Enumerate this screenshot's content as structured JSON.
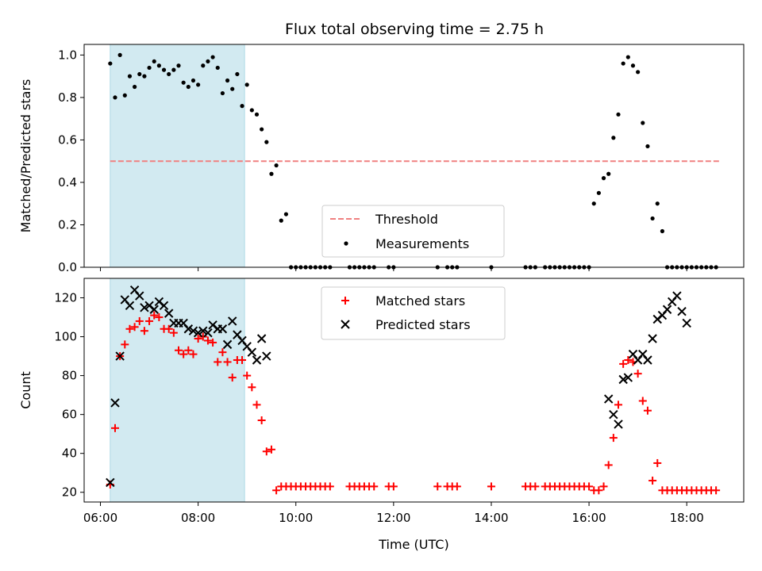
{
  "figure": {
    "title": "Flux total observing time = 2.75 h",
    "xlabel": "Time (UTC)",
    "colors": {
      "shade": "#add8e6",
      "threshold": "#f08080",
      "measurements": "#000000",
      "matched": "#ff0000",
      "predicted": "#000000"
    }
  },
  "chart_data": [
    {
      "type": "scatter",
      "title": "Flux total observing time = 2.75 h",
      "xlabel": "Time (UTC)",
      "ylabel": "Matched/Predicted stars",
      "xlim": [
        "05:40",
        "19:10"
      ],
      "ylim": [
        0,
        1.05
      ],
      "yticks": [
        0.0,
        0.2,
        0.4,
        0.6,
        0.8,
        1.0
      ],
      "ytick_labels": [
        "0.0",
        "0.2",
        "0.4",
        "0.6",
        "0.8",
        "1.0"
      ],
      "xtick_labels": [
        "06:00",
        "08:00",
        "10:00",
        "12:00",
        "14:00",
        "16:00",
        "18:00"
      ],
      "shaded_region": [
        "06:12",
        "08:57"
      ],
      "threshold": {
        "name": "Threshold",
        "value": 0.5,
        "x_range": [
          "06:12",
          "18:40"
        ]
      },
      "legend": {
        "placement": "lower center",
        "entries": [
          "Threshold",
          "Measurements"
        ]
      },
      "series": [
        {
          "name": "Measurements",
          "x": [
            "06:12",
            "06:18",
            "06:24",
            "06:30",
            "06:36",
            "06:42",
            "06:48",
            "06:54",
            "07:00",
            "07:06",
            "07:12",
            "07:18",
            "07:24",
            "07:30",
            "07:36",
            "07:42",
            "07:48",
            "07:54",
            "08:00",
            "08:06",
            "08:12",
            "08:18",
            "08:24",
            "08:30",
            "08:36",
            "08:42",
            "08:48",
            "08:54",
            "09:00",
            "09:06",
            "09:12",
            "09:18",
            "09:24",
            "09:30",
            "09:36",
            "09:42",
            "09:48",
            "09:54",
            "10:00",
            "10:06",
            "10:12",
            "10:18",
            "10:24",
            "10:30",
            "10:36",
            "10:42",
            "11:06",
            "11:12",
            "11:18",
            "11:24",
            "11:30",
            "11:36",
            "11:54",
            "12:00",
            "12:54",
            "13:06",
            "13:12",
            "13:18",
            "14:00",
            "14:42",
            "14:48",
            "14:54",
            "15:06",
            "15:12",
            "15:18",
            "15:24",
            "15:30",
            "15:36",
            "15:42",
            "15:48",
            "15:54",
            "16:00",
            "16:06",
            "16:12",
            "16:18",
            "16:24",
            "16:30",
            "16:36",
            "16:42",
            "16:48",
            "16:54",
            "17:00",
            "17:06",
            "17:12",
            "17:18",
            "17:24",
            "17:30",
            "17:36",
            "17:42",
            "17:48",
            "17:54",
            "18:00",
            "18:06",
            "18:12",
            "18:18",
            "18:24",
            "18:30",
            "18:36"
          ],
          "y": [
            0.96,
            0.8,
            1.0,
            0.81,
            0.9,
            0.85,
            0.91,
            0.9,
            0.94,
            0.97,
            0.95,
            0.93,
            0.91,
            0.93,
            0.95,
            0.87,
            0.85,
            0.88,
            0.86,
            0.95,
            0.97,
            0.99,
            0.94,
            0.82,
            0.88,
            0.84,
            0.91,
            0.76,
            0.86,
            0.74,
            0.72,
            0.65,
            0.59,
            0.44,
            0.48,
            0.22,
            0.25,
            0.0,
            0.0,
            0.0,
            0.0,
            0.0,
            0.0,
            0.0,
            0.0,
            0.0,
            0.0,
            0.0,
            0.0,
            0.0,
            0.0,
            0.0,
            0.0,
            0.0,
            0.0,
            0.0,
            0.0,
            0.0,
            0.0,
            0.0,
            0.0,
            0.0,
            0.0,
            0.0,
            0.0,
            0.0,
            0.0,
            0.0,
            0.0,
            0.0,
            0.0,
            0.0,
            0.3,
            0.35,
            0.42,
            0.44,
            0.61,
            0.72,
            0.96,
            0.99,
            0.95,
            0.92,
            0.68,
            0.57,
            0.23,
            0.3,
            0.17,
            0.0,
            0.0,
            0.0,
            0.0,
            0.0,
            0.0,
            0.0,
            0.0,
            0.0,
            0.0,
            0.0
          ]
        }
      ]
    },
    {
      "type": "scatter",
      "xlabel": "Time (UTC)",
      "ylabel": "Count",
      "xlim": [
        "05:40",
        "19:10"
      ],
      "ylim": [
        15,
        130
      ],
      "yticks": [
        20,
        40,
        60,
        80,
        100,
        120
      ],
      "ytick_labels": [
        "20",
        "40",
        "60",
        "80",
        "100",
        "120"
      ],
      "xtick_labels": [
        "06:00",
        "08:00",
        "10:00",
        "12:00",
        "14:00",
        "16:00",
        "18:00"
      ],
      "shaded_region": [
        "06:12",
        "08:57"
      ],
      "legend": {
        "placement": "upper center",
        "entries": [
          "Matched stars",
          "Predicted stars"
        ]
      },
      "series": [
        {
          "name": "Matched stars",
          "x": [
            "06:12",
            "06:18",
            "06:24",
            "06:30",
            "06:36",
            "06:42",
            "06:48",
            "06:54",
            "07:00",
            "07:06",
            "07:12",
            "07:18",
            "07:24",
            "07:30",
            "07:36",
            "07:42",
            "07:48",
            "07:54",
            "08:00",
            "08:06",
            "08:12",
            "08:18",
            "08:24",
            "08:30",
            "08:36",
            "08:42",
            "08:48",
            "08:54",
            "09:00",
            "09:06",
            "09:12",
            "09:18",
            "09:24",
            "09:30",
            "09:36",
            "09:42",
            "09:48",
            "09:54",
            "10:00",
            "10:06",
            "10:12",
            "10:18",
            "10:24",
            "10:30",
            "10:36",
            "10:42",
            "11:06",
            "11:12",
            "11:18",
            "11:24",
            "11:30",
            "11:36",
            "11:54",
            "12:00",
            "12:54",
            "13:06",
            "13:12",
            "13:18",
            "14:00",
            "14:42",
            "14:48",
            "14:54",
            "15:06",
            "15:12",
            "15:18",
            "15:24",
            "15:30",
            "15:36",
            "15:42",
            "15:48",
            "15:54",
            "16:00",
            "16:06",
            "16:12",
            "16:18",
            "16:24",
            "16:30",
            "16:36",
            "16:42",
            "16:48",
            "16:54",
            "17:00",
            "17:06",
            "17:12",
            "17:18",
            "17:24",
            "17:30",
            "17:36",
            "17:42",
            "17:48",
            "17:54",
            "18:00",
            "18:06",
            "18:12",
            "18:18",
            "18:24",
            "18:30",
            "18:36"
          ],
          "y": [
            24,
            53,
            90,
            96,
            104,
            105,
            108,
            103,
            108,
            111,
            110,
            104,
            104,
            102,
            93,
            91,
            93,
            91,
            99,
            100,
            98,
            97,
            87,
            92,
            87,
            79,
            88,
            88,
            80,
            74,
            65,
            57,
            41,
            42,
            21,
            23,
            23,
            23,
            23,
            23,
            23,
            23,
            23,
            23,
            23,
            23,
            23,
            23,
            23,
            23,
            23,
            23,
            23,
            23,
            23,
            23,
            23,
            23,
            23,
            23,
            23,
            23,
            23,
            23,
            23,
            23,
            23,
            23,
            23,
            23,
            23,
            23,
            21,
            21,
            23,
            34,
            48,
            65,
            86,
            88,
            87,
            81,
            67,
            62,
            26,
            35,
            21,
            21,
            21,
            21,
            21,
            21,
            21,
            21,
            21,
            21,
            21,
            21
          ]
        },
        {
          "name": "Predicted stars",
          "x": [
            "06:12",
            "06:18",
            "06:24",
            "06:30",
            "06:36",
            "06:42",
            "06:48",
            "06:54",
            "07:00",
            "07:06",
            "07:12",
            "07:18",
            "07:24",
            "07:30",
            "07:36",
            "07:42",
            "07:48",
            "07:54",
            "08:00",
            "08:06",
            "08:12",
            "08:18",
            "08:24",
            "08:30",
            "08:36",
            "08:42",
            "08:48",
            "08:54",
            "09:00",
            "09:06",
            "09:12",
            "09:18",
            "09:24",
            "16:24",
            "16:30",
            "16:36",
            "16:42",
            "16:48",
            "16:54",
            "17:00",
            "17:06",
            "17:12",
            "17:18",
            "17:24",
            "17:30",
            "17:36",
            "17:42",
            "17:48",
            "17:54",
            "18:00"
          ],
          "y": [
            25,
            66,
            90,
            119,
            116,
            124,
            121,
            115,
            116,
            114,
            118,
            116,
            112,
            107,
            107,
            107,
            104,
            103,
            102,
            103,
            102,
            106,
            104,
            104,
            96,
            108,
            101,
            98,
            95,
            92,
            88,
            99,
            90,
            68,
            60,
            55,
            78,
            79,
            91,
            88,
            91,
            88,
            99,
            109,
            111,
            114,
            118,
            121,
            113,
            107
          ]
        }
      ]
    }
  ]
}
